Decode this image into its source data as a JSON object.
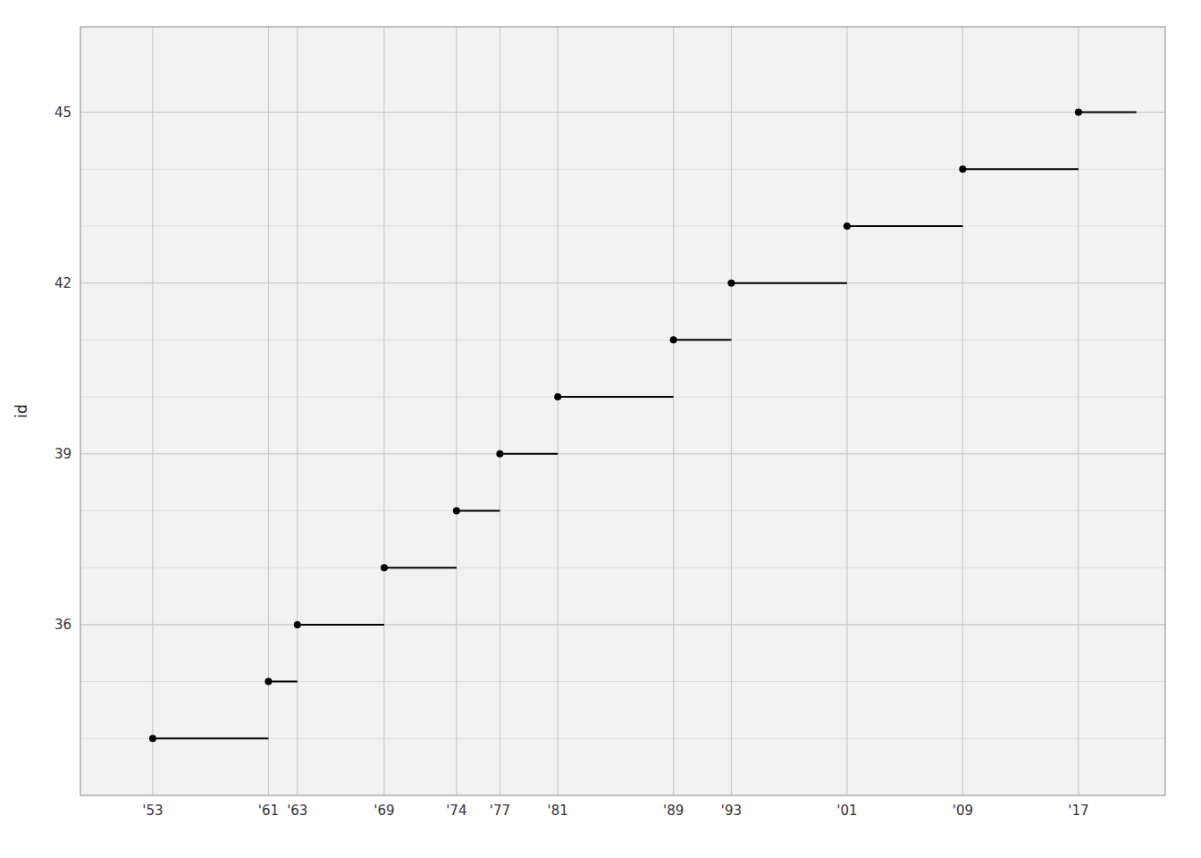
{
  "chart_data": {
    "type": "segment",
    "ylabel": "id",
    "y": [
      34,
      35,
      36,
      37,
      38,
      39,
      40,
      41,
      42,
      43,
      44,
      45
    ],
    "start": [
      1953,
      1961,
      1963,
      1969,
      1974,
      1977,
      1981,
      1989,
      1993,
      2001,
      2009,
      2017
    ],
    "end": [
      1961,
      1963,
      1969,
      1974,
      1977,
      1981,
      1989,
      1993,
      2001,
      2009,
      2017,
      2021
    ],
    "color": "#000000",
    "marker": "circle",
    "xlim": [
      1948,
      2023
    ],
    "ylim": [
      33.0,
      46.5
    ],
    "xticks": [
      {
        "value": 1953,
        "label": "'53"
      },
      {
        "value": 1961,
        "label": "'61"
      },
      {
        "value": 1963,
        "label": "'63"
      },
      {
        "value": 1969,
        "label": "'69"
      },
      {
        "value": 1974,
        "label": "'74"
      },
      {
        "value": 1977,
        "label": "'77"
      },
      {
        "value": 1981,
        "label": "'81"
      },
      {
        "value": 1989,
        "label": "'89"
      },
      {
        "value": 1993,
        "label": "'93"
      },
      {
        "value": 2001,
        "label": "'01"
      },
      {
        "value": 2009,
        "label": "'09"
      },
      {
        "value": 2017,
        "label": "'17"
      }
    ],
    "yticks": [
      36,
      39,
      42,
      45
    ],
    "yticks_minor": [
      34,
      35,
      36,
      37,
      38,
      39,
      40,
      41,
      42,
      43,
      44,
      45
    ],
    "grid": true
  }
}
